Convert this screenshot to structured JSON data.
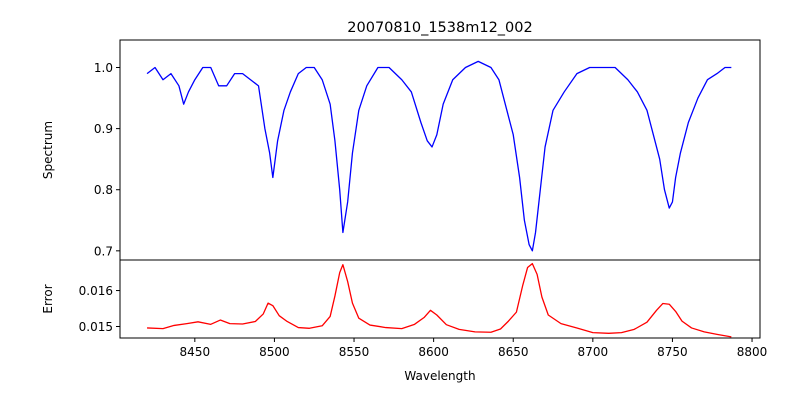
{
  "chart_data": {
    "type": "line",
    "title": "20070810_1538m12_002",
    "xlabel": "Wavelength",
    "xlim": [
      8403,
      8805
    ],
    "xticks": [
      8450,
      8500,
      8550,
      8600,
      8650,
      8700,
      8750,
      8800
    ],
    "xtick_labels": [
      "8450",
      "8500",
      "8550",
      "8600",
      "8650",
      "8700",
      "8750",
      "8800"
    ],
    "panels": [
      {
        "ylabel": "Spectrum",
        "ylim": [
          0.685,
          1.045
        ],
        "yticks": [
          0.7,
          0.8,
          0.9,
          1.0
        ],
        "ytick_labels": [
          "0.7",
          "0.8",
          "0.9",
          "1.0"
        ],
        "color": "#0000ff",
        "x": [
          8420,
          8425,
          8430,
          8435,
          8440,
          8443,
          8446,
          8450,
          8455,
          8460,
          8465,
          8470,
          8475,
          8480,
          8485,
          8490,
          8494,
          8497,
          8499,
          8502,
          8506,
          8510,
          8515,
          8520,
          8525,
          8530,
          8535,
          8538,
          8541,
          8543,
          8546,
          8549,
          8553,
          8558,
          8565,
          8572,
          8580,
          8586,
          8592,
          8596,
          8599,
          8602,
          8606,
          8612,
          8620,
          8628,
          8636,
          8641,
          8645,
          8650,
          8654,
          8657,
          8660,
          8662,
          8664,
          8667,
          8670,
          8675,
          8682,
          8690,
          8698,
          8706,
          8714,
          8722,
          8728,
          8734,
          8738,
          8742,
          8745,
          8748,
          8750,
          8752,
          8755,
          8760,
          8766,
          8772,
          8778,
          8783,
          8787
        ],
        "values": [
          0.99,
          1.0,
          0.98,
          0.99,
          0.97,
          0.94,
          0.96,
          0.98,
          1.0,
          1.0,
          0.97,
          0.97,
          0.99,
          0.99,
          0.98,
          0.97,
          0.9,
          0.86,
          0.82,
          0.88,
          0.93,
          0.96,
          0.99,
          1.0,
          1.0,
          0.98,
          0.94,
          0.88,
          0.8,
          0.73,
          0.78,
          0.86,
          0.93,
          0.97,
          1.0,
          1.0,
          0.98,
          0.96,
          0.91,
          0.88,
          0.87,
          0.89,
          0.94,
          0.98,
          1.0,
          1.01,
          1.0,
          0.98,
          0.94,
          0.89,
          0.82,
          0.75,
          0.71,
          0.7,
          0.73,
          0.8,
          0.87,
          0.93,
          0.96,
          0.99,
          1.0,
          1.0,
          1.0,
          0.98,
          0.96,
          0.93,
          0.89,
          0.85,
          0.8,
          0.77,
          0.78,
          0.82,
          0.86,
          0.91,
          0.95,
          0.98,
          0.99,
          1.0,
          1.0
        ]
      },
      {
        "ylabel": "Error",
        "ylim": [
          0.01468,
          0.01685
        ],
        "yticks": [
          0.015,
          0.016
        ],
        "ytick_labels": [
          "0.015",
          "0.016"
        ],
        "color": "#ff0000",
        "x": [
          8420,
          8430,
          8437,
          8445,
          8452,
          8460,
          8466,
          8472,
          8480,
          8488,
          8493,
          8496,
          8499,
          8503,
          8508,
          8515,
          8522,
          8530,
          8535,
          8538,
          8541,
          8543,
          8546,
          8549,
          8553,
          8560,
          8570,
          8580,
          8588,
          8594,
          8598,
          8602,
          8608,
          8616,
          8626,
          8636,
          8642,
          8647,
          8652,
          8656,
          8659,
          8662,
          8665,
          8668,
          8672,
          8680,
          8690,
          8700,
          8710,
          8718,
          8726,
          8734,
          8740,
          8744,
          8748,
          8752,
          8756,
          8762,
          8770,
          8778,
          8787
        ],
        "values": [
          0.01496,
          0.01494,
          0.01503,
          0.01508,
          0.01513,
          0.01506,
          0.01518,
          0.01508,
          0.01507,
          0.01514,
          0.01535,
          0.01565,
          0.01558,
          0.0153,
          0.01514,
          0.01497,
          0.01495,
          0.01502,
          0.01528,
          0.01585,
          0.0165,
          0.01672,
          0.01625,
          0.01565,
          0.01523,
          0.01504,
          0.01497,
          0.01494,
          0.01506,
          0.01525,
          0.01545,
          0.01532,
          0.01505,
          0.01492,
          0.01485,
          0.01484,
          0.01493,
          0.01515,
          0.0154,
          0.01615,
          0.01664,
          0.01675,
          0.01645,
          0.01582,
          0.01532,
          0.01508,
          0.01496,
          0.01483,
          0.01481,
          0.01483,
          0.01492,
          0.01512,
          0.01545,
          0.01564,
          0.01562,
          0.01542,
          0.01515,
          0.01496,
          0.01485,
          0.01478,
          0.01471
        ]
      }
    ]
  }
}
